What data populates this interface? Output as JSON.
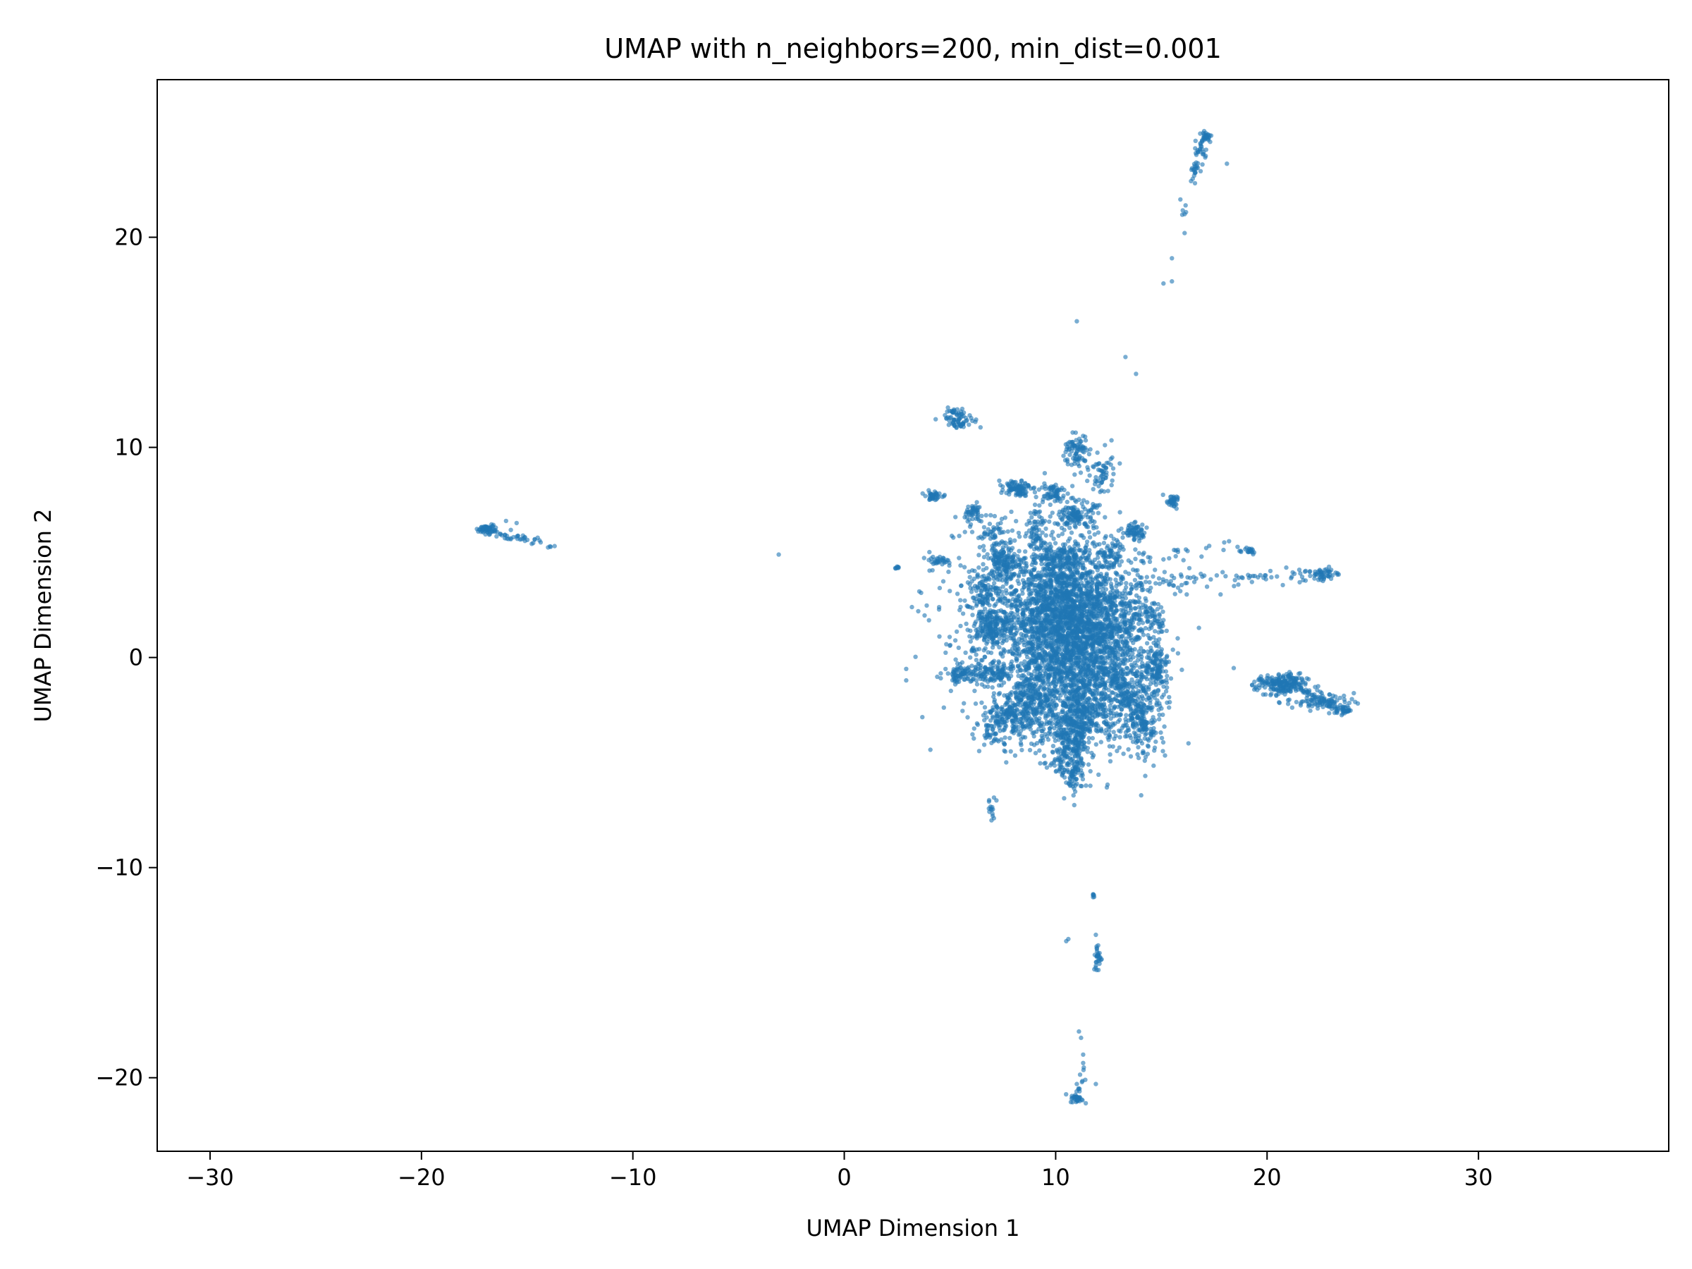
{
  "chart_data": {
    "type": "scatter",
    "title": "UMAP with n_neighbors=200, min_dist=0.001",
    "xlabel": "UMAP Dimension 1",
    "ylabel": "UMAP Dimension 2",
    "xlim": [
      -32.5,
      39.0
    ],
    "ylim": [
      -23.5,
      27.5
    ],
    "xticks": [
      -30,
      -20,
      -10,
      0,
      10,
      20,
      30
    ],
    "yticks": [
      -20,
      -10,
      0,
      10,
      20
    ],
    "xtick_labels": [
      "−30",
      "−20",
      "−10",
      "0",
      "10",
      "20",
      "30"
    ],
    "ytick_labels": [
      "−20",
      "−10",
      "0",
      "10",
      "20"
    ],
    "grid": false,
    "marker_color": "#1f77b4",
    "marker_alpha": 0.6,
    "clusters": [
      {
        "center": [
          10.5,
          2.0
        ],
        "spread": [
          1.6,
          1.8
        ],
        "count": 2200
      },
      {
        "center": [
          11.5,
          -1.5
        ],
        "spread": [
          1.5,
          1.5
        ],
        "count": 900
      },
      {
        "center": [
          9.0,
          1.5
        ],
        "spread": [
          2.2,
          2.2
        ],
        "count": 700
      },
      {
        "center": [
          10.8,
          -3.5
        ],
        "spread": [
          0.4,
          1.2
        ],
        "count": 260
      },
      {
        "center": [
          8.0,
          -3.0
        ],
        "spread": [
          1.0,
          0.6
        ],
        "count": 220
      },
      {
        "center": [
          14.0,
          -2.5
        ],
        "spread": [
          0.6,
          1.2
        ],
        "count": 180
      },
      {
        "center": [
          14.8,
          -0.5
        ],
        "spread": [
          0.3,
          0.5
        ],
        "count": 120
      },
      {
        "center": [
          12.5,
          1.0
        ],
        "spread": [
          1.2,
          1.2
        ],
        "count": 300
      },
      {
        "center": [
          7.5,
          4.5
        ],
        "spread": [
          0.4,
          0.4
        ],
        "count": 120
      },
      {
        "center": [
          7.0,
          1.5
        ],
        "spread": [
          0.4,
          0.4
        ],
        "count": 140
      },
      {
        "center": [
          7.0,
          -0.8
        ],
        "spread": [
          0.6,
          0.2
        ],
        "count": 100
      },
      {
        "center": [
          5.5,
          -0.8
        ],
        "spread": [
          0.3,
          0.2
        ],
        "count": 60
      },
      {
        "center": [
          6.5,
          3.2
        ],
        "spread": [
          0.4,
          0.4
        ],
        "count": 80
      },
      {
        "center": [
          8.2,
          8.1
        ],
        "spread": [
          0.3,
          0.2
        ],
        "count": 90
      },
      {
        "center": [
          9.8,
          7.8
        ],
        "spread": [
          0.3,
          0.3
        ],
        "count": 60
      },
      {
        "center": [
          11.0,
          9.8
        ],
        "spread": [
          0.3,
          0.4
        ],
        "count": 80
      },
      {
        "center": [
          11.0,
          6.8
        ],
        "spread": [
          0.4,
          0.3
        ],
        "count": 120
      },
      {
        "center": [
          12.2,
          8.7
        ],
        "spread": [
          0.3,
          0.6
        ],
        "count": 60
      },
      {
        "center": [
          13.7,
          6.0
        ],
        "spread": [
          0.3,
          0.2
        ],
        "count": 60
      },
      {
        "center": [
          12.5,
          5.0
        ],
        "spread": [
          0.3,
          0.3
        ],
        "count": 40
      },
      {
        "center": [
          9.1,
          6.2
        ],
        "spread": [
          0.2,
          0.6
        ],
        "count": 60
      },
      {
        "center": [
          6.1,
          6.8
        ],
        "spread": [
          0.3,
          0.3
        ],
        "count": 50
      },
      {
        "center": [
          4.2,
          7.7
        ],
        "spread": [
          0.2,
          0.1
        ],
        "count": 40
      },
      {
        "center": [
          4.5,
          4.6
        ],
        "spread": [
          0.3,
          0.1
        ],
        "count": 30
      },
      {
        "center": [
          15.5,
          7.4
        ],
        "spread": [
          0.2,
          0.15
        ],
        "count": 35
      },
      {
        "center": [
          14.5,
          2.0
        ],
        "spread": [
          0.3,
          0.3
        ],
        "count": 50
      },
      {
        "center": [
          7.0,
          6.0
        ],
        "spread": [
          0.3,
          0.3
        ],
        "count": 40
      },
      {
        "center": [
          10.5,
          4.8
        ],
        "spread": [
          0.5,
          0.3
        ],
        "count": 80
      },
      {
        "center": [
          9.0,
          -2.0
        ],
        "spread": [
          0.5,
          0.5
        ],
        "count": 80
      },
      {
        "center": [
          10.3,
          -4.8
        ],
        "spread": [
          0.2,
          0.5
        ],
        "count": 40
      },
      {
        "center": [
          10.8,
          -5.7
        ],
        "spread": [
          0.1,
          0.4
        ],
        "count": 30
      },
      {
        "center": [
          7.0,
          -7.3
        ],
        "spread": [
          0.1,
          0.3
        ],
        "count": 14
      },
      {
        "center": [
          5.5,
          11.3
        ],
        "spread": [
          0.4,
          0.2
        ],
        "count": 60
      },
      {
        "center": [
          5.2,
          11.7
        ],
        "spread": [
          0.2,
          0.1
        ],
        "count": 15
      },
      {
        "center": [
          -16.9,
          6.1
        ],
        "spread": [
          0.25,
          0.1
        ],
        "count": 60
      },
      {
        "center": [
          2.5,
          4.3
        ],
        "spread": [
          0.05,
          0.05
        ],
        "count": 8
      },
      {
        "center": [
          20.7,
          -1.3
        ],
        "spread": [
          0.6,
          0.25
        ],
        "count": 200
      },
      {
        "center": [
          22.5,
          -2.1
        ],
        "spread": [
          0.8,
          0.2
        ],
        "count": 80
      },
      {
        "center": [
          23.6,
          -2.5
        ],
        "spread": [
          0.2,
          0.1
        ],
        "count": 30
      },
      {
        "center": [
          22.8,
          4.0
        ],
        "spread": [
          0.3,
          0.15
        ],
        "count": 40
      },
      {
        "center": [
          19.0,
          5.1
        ],
        "spread": [
          0.3,
          0.1
        ],
        "count": 20
      },
      {
        "center": [
          17.1,
          24.8
        ],
        "spread": [
          0.15,
          0.15
        ],
        "count": 30
      },
      {
        "center": [
          16.9,
          24.1
        ],
        "spread": [
          0.15,
          0.25
        ],
        "count": 20
      },
      {
        "center": [
          16.6,
          23.2
        ],
        "spread": [
          0.12,
          0.25
        ],
        "count": 15
      },
      {
        "center": [
          11.0,
          -21.0
        ],
        "spread": [
          0.15,
          0.1
        ],
        "count": 30
      },
      {
        "center": [
          12.0,
          -14.3
        ],
        "spread": [
          0.1,
          0.35
        ],
        "count": 30
      },
      {
        "center": [
          11.8,
          -11.3
        ],
        "spread": [
          0.03,
          0.05
        ],
        "count": 6
      }
    ],
    "arms": [
      {
        "from": [
          13.5,
          3.5
        ],
        "to": [
          22.5,
          4.0
        ],
        "count": 90,
        "jitter": 0.45
      },
      {
        "from": [
          13.0,
          4.5
        ],
        "to": [
          18.5,
          5.5
        ],
        "count": 25,
        "jitter": 0.3
      },
      {
        "from": [
          -16.8,
          6.0
        ],
        "to": [
          -13.8,
          5.3
        ],
        "count": 35,
        "jitter": 0.2
      },
      {
        "from": [
          16.0,
          21.0
        ],
        "to": [
          17.1,
          24.8
        ],
        "count": 12,
        "jitter": 0.15
      },
      {
        "from": [
          11.3,
          -19.5
        ],
        "to": [
          11.0,
          -21.0
        ],
        "count": 12,
        "jitter": 0.15
      },
      {
        "from": [
          11.3,
          -2.0
        ],
        "to": [
          11.0,
          -5.5
        ],
        "count": 80,
        "jitter": 0.25
      },
      {
        "from": [
          12.5,
          -0.5
        ],
        "to": [
          14.5,
          -3.8
        ],
        "count": 100,
        "jitter": 0.3
      },
      {
        "from": [
          10.0,
          0.0
        ],
        "to": [
          6.5,
          -4.0
        ],
        "count": 120,
        "jitter": 0.35
      },
      {
        "from": [
          21.5,
          -1.5
        ],
        "to": [
          23.8,
          -2.6
        ],
        "count": 40,
        "jitter": 0.15
      }
    ],
    "isolated_points": [
      [
        -3.1,
        4.9
      ],
      [
        -13.7,
        5.3
      ],
      [
        -15.5,
        6.4
      ],
      [
        -16.0,
        6.5
      ],
      [
        -15.2,
        5.8
      ],
      [
        -14.5,
        5.7
      ],
      [
        11.0,
        16.0
      ],
      [
        13.3,
        14.3
      ],
      [
        13.8,
        13.5
      ],
      [
        15.1,
        17.8
      ],
      [
        15.5,
        17.9
      ],
      [
        15.5,
        19.0
      ],
      [
        16.1,
        20.2
      ],
      [
        16.1,
        21.1
      ],
      [
        15.9,
        21.8
      ],
      [
        18.1,
        23.5
      ],
      [
        10.5,
        -13.5
      ],
      [
        10.6,
        -13.4
      ],
      [
        11.1,
        -17.8
      ],
      [
        11.2,
        -18.1
      ],
      [
        11.3,
        -18.9
      ],
      [
        11.3,
        -19.3
      ],
      [
        11.4,
        -20.1
      ],
      [
        11.9,
        -20.3
      ],
      [
        11.0,
        -20.3
      ],
      [
        11.9,
        -13.2
      ],
      [
        7.2,
        -6.8
      ],
      [
        10.4,
        -6.7
      ],
      [
        16.9,
        4.8
      ],
      [
        17.8,
        3.0
      ],
      [
        16.2,
        3.0
      ],
      [
        3.5,
        2.2
      ],
      [
        3.8,
        2.0
      ],
      [
        4.5,
        1.0
      ],
      [
        5.5,
        1.5
      ],
      [
        3.2,
        2.4
      ]
    ]
  }
}
